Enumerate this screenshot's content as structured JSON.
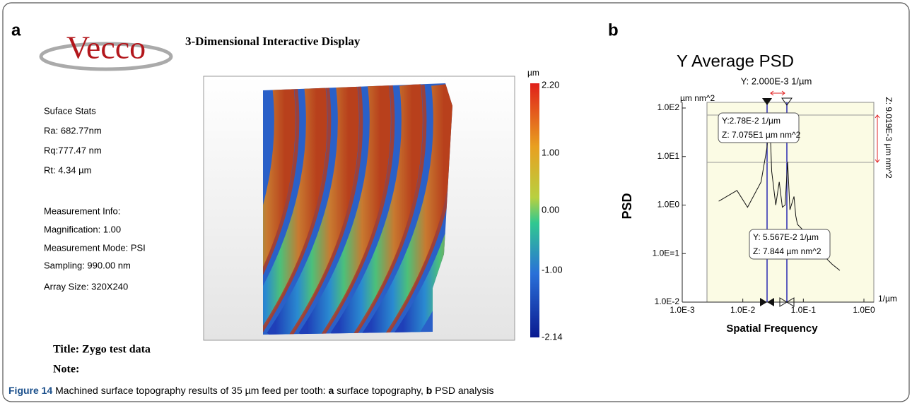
{
  "panel_a": {
    "label": "a",
    "logo": "Vecco",
    "display_title": "3-Dimensional Interactive Display",
    "stats": [
      "Suface Stats",
      "Ra: 682.77nm",
      "Rq:777.47 nm",
      "Rt: 4.34 µm"
    ],
    "info": [
      "Measurement Info:",
      "Magnification: 1.00",
      "Measurement Mode: PSI",
      "Sampling: 990.00 nm",
      "Array Size: 320X240"
    ],
    "colorbar": {
      "unit": "µm",
      "ticks": [
        "2.20",
        "1.00",
        "0.00",
        "-1.00",
        "-2.14"
      ]
    },
    "title": "Title: Zygo test data",
    "note": "Note:"
  },
  "panel_b_label": "b",
  "chart_data": {
    "type": "line",
    "title": "Y Average PSD",
    "x_label": "Spatial Frequency",
    "y_label": "PSD",
    "x_unit": "1/µm",
    "y_unit": "µm nm^2",
    "log_x": true,
    "log_y": true,
    "xlim": [
      0.001,
      1
    ],
    "ylim": [
      0.01,
      100
    ],
    "xticks": [
      {
        "value": 0.001,
        "label": "1.0E-3"
      },
      {
        "value": 0.01,
        "label": "1.0E-2"
      },
      {
        "value": 0.1,
        "label": "1.0E-1"
      },
      {
        "value": 1,
        "label": "1.0E0"
      }
    ],
    "yticks": [
      {
        "value": 100,
        "label": "1.0E2"
      },
      {
        "value": 10,
        "label": "1.0E1"
      },
      {
        "value": 1,
        "label": "1.0E0"
      },
      {
        "value": 0.1,
        "label": "1.0E=1"
      },
      {
        "value": 0.01,
        "label": "1.0E-2"
      }
    ],
    "annotations": [
      "Y: 2.000E-3 1/µm",
      "Y:2.78E-2 1/µm",
      "Z: 7.075E1 µm nm^2",
      "Y: 5.567E-2 1/µm",
      "Z: 7.844 µm nm^2",
      "Z: 9.019E-3 µm nm^2"
    ],
    "series": [
      {
        "color": "#111111",
        "x": [
          0.004,
          0.008,
          0.012,
          0.02,
          0.025,
          0.0278,
          0.03,
          0.035,
          0.04,
          0.045,
          0.05,
          0.055,
          0.06,
          0.07,
          0.075,
          0.08,
          0.1,
          0.15,
          0.2,
          0.3,
          0.4
        ],
        "values": [
          1.2,
          2,
          0.9,
          3,
          15,
          70.75,
          5,
          1,
          3,
          0.9,
          1,
          7.8,
          0.8,
          1.5,
          0.6,
          0.4,
          0.3,
          0.2,
          0.1,
          0.06,
          0.045
        ]
      }
    ]
  },
  "caption": {
    "label": "Figure 14",
    "text": "Machined surface topography results of 35 µm feed per tooth:",
    "a": "a",
    "a_text": "surface topography,",
    "b": "b",
    "b_text": "PSD analysis"
  }
}
